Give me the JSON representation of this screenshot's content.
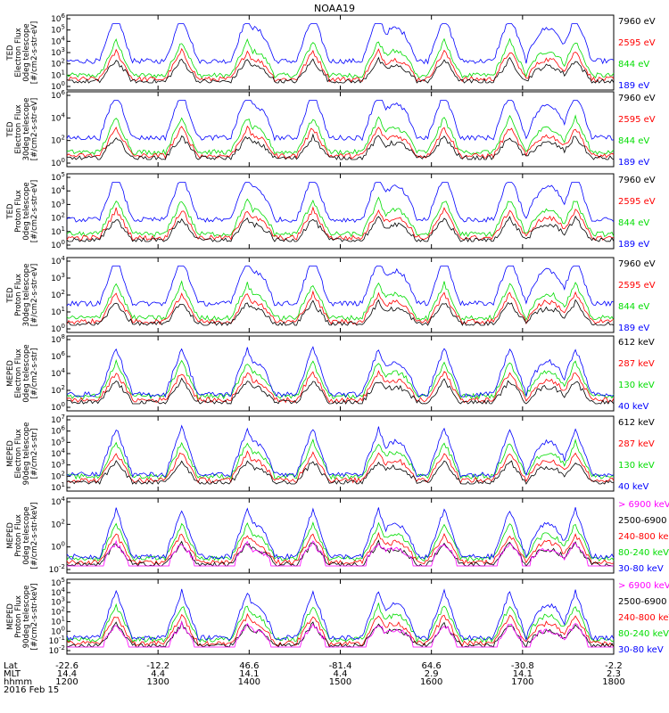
{
  "title": "NOAA19",
  "colors": {
    "blue": "#0000ff",
    "red": "#ff0000",
    "green": "#00dd00",
    "black": "#000000",
    "magenta": "#ff00ff"
  },
  "panels": [
    {
      "ylabel": [
        "TED",
        "Electron Flux",
        "0deg telescope",
        "[#/cm2-s-str-eV]"
      ],
      "yticks": [
        "10^6",
        "10^5",
        "10^4",
        "10^3",
        "10^2",
        "10^1",
        "10^0"
      ],
      "legend": [
        {
          "text": "7960 eV",
          "color": "#000000"
        },
        {
          "text": "2595 eV",
          "color": "#ff0000"
        },
        {
          "text": "844 eV",
          "color": "#00dd00"
        },
        {
          "text": "189 eV",
          "color": "#0000ff"
        }
      ]
    },
    {
      "ylabel": [
        "TED",
        "Electron Flux",
        "30deg telescope",
        "[#/cm2-s-str-eV]"
      ],
      "yticks": [
        "10^6",
        "10^4",
        "10^2",
        "10^0"
      ],
      "legend": [
        {
          "text": "7960 eV",
          "color": "#000000"
        },
        {
          "text": "2595 eV",
          "color": "#ff0000"
        },
        {
          "text": "844 eV",
          "color": "#00dd00"
        },
        {
          "text": "189 eV",
          "color": "#0000ff"
        }
      ]
    },
    {
      "ylabel": [
        "TED",
        "Proton Flux",
        "0deg telescope",
        "[#/cm2-s-str-eV]"
      ],
      "yticks": [
        "10^5",
        "10^4",
        "10^3",
        "10^2",
        "10^1",
        "10^0"
      ],
      "legend": [
        {
          "text": "7960 eV",
          "color": "#000000"
        },
        {
          "text": "2595 eV",
          "color": "#ff0000"
        },
        {
          "text": "844 eV",
          "color": "#00dd00"
        },
        {
          "text": "189 eV",
          "color": "#0000ff"
        }
      ]
    },
    {
      "ylabel": [
        "TED",
        "Proton Flux",
        "30deg telescope",
        "[#/cm2-s-str-eV]"
      ],
      "yticks": [
        "10^4",
        "10^3",
        "10^2",
        "10^1",
        "10^0"
      ],
      "legend": [
        {
          "text": "7960 eV",
          "color": "#000000"
        },
        {
          "text": "2595 eV",
          "color": "#ff0000"
        },
        {
          "text": "844 eV",
          "color": "#00dd00"
        },
        {
          "text": "189 eV",
          "color": "#0000ff"
        }
      ]
    },
    {
      "ylabel": [
        "MEPED",
        "Electron Flux",
        "0deg telescope",
        "[#/cm2-s-str]"
      ],
      "yticks": [
        "10^8",
        "10^6",
        "10^4",
        "10^2",
        "10^0"
      ],
      "legend": [
        {
          "text": "612 keV",
          "color": "#000000"
        },
        {
          "text": "287 keV",
          "color": "#ff0000"
        },
        {
          "text": "130 keV",
          "color": "#00dd00"
        },
        {
          "text": "40 keV",
          "color": "#0000ff"
        }
      ]
    },
    {
      "ylabel": [
        "MEPED",
        "Electron Flux",
        "90deg telescope",
        "[#/cm2-s-str]"
      ],
      "yticks": [
        "10^7",
        "10^6",
        "10^5",
        "10^4",
        "10^3",
        "10^2",
        "10^1"
      ],
      "legend": [
        {
          "text": "612 keV",
          "color": "#000000"
        },
        {
          "text": "287 keV",
          "color": "#ff0000"
        },
        {
          "text": "130 keV",
          "color": "#00dd00"
        },
        {
          "text": "40 keV",
          "color": "#0000ff"
        }
      ]
    },
    {
      "ylabel": [
        "MEPED",
        "Proton Flux",
        "0deg telescope",
        "[#/cm2-s-str-keV]"
      ],
      "yticks": [
        "10^4",
        "10^2",
        "10^0",
        "10^-2"
      ],
      "legend": [
        {
          "text": "> 6900 keV",
          "color": "#ff00ff"
        },
        {
          "text": "2500-6900",
          "color": "#000000"
        },
        {
          "text": "240-800 ke",
          "color": "#ff0000"
        },
        {
          "text": "80-240 keV",
          "color": "#00dd00"
        },
        {
          "text": "30-80 keV",
          "color": "#0000ff"
        }
      ]
    },
    {
      "ylabel": [
        "MEPED",
        "Proton Flux",
        "90deg telescope",
        "[#/cm2-s-str-keV]"
      ],
      "yticks": [
        "10^5",
        "10^4",
        "10^3",
        "10^2",
        "10^1",
        "10^0",
        "10^-1",
        "10^-2"
      ],
      "legend": [
        {
          "text": "> 6900 keV",
          "color": "#ff00ff"
        },
        {
          "text": "2500-6900",
          "color": "#000000"
        },
        {
          "text": "240-800 keV",
          "color": "#ff0000"
        },
        {
          "text": "80-240 keV",
          "color": "#00dd00"
        },
        {
          "text": "30-80 keV",
          "color": "#0000ff"
        }
      ]
    }
  ],
  "xaxis": {
    "row_labels": [
      "Lat",
      "MLT",
      "hhmm",
      "2016 Feb 15"
    ],
    "ticks": [
      {
        "lat": "-22.6",
        "mlt": "14.4",
        "hhmm": "1200"
      },
      {
        "lat": "-12.2",
        "mlt": "4.4",
        "hhmm": "1300"
      },
      {
        "lat": "46.6",
        "mlt": "14.1",
        "hhmm": "1400"
      },
      {
        "lat": "-81.4",
        "mlt": "4.4",
        "hhmm": "1500"
      },
      {
        "lat": "64.6",
        "mlt": "2.9",
        "hhmm": "1600"
      },
      {
        "lat": "-30.8",
        "mlt": "14.1",
        "hhmm": "1700"
      },
      {
        "lat": "-2.2",
        "mlt": "2.3",
        "hhmm": "1800"
      }
    ]
  },
  "chart_data": {
    "type": "line",
    "title": "NOAA19",
    "x_range": [
      "1200",
      "1800"
    ],
    "x_tick_labels": [
      "1200",
      "1300",
      "1400",
      "1500",
      "1600",
      "1700",
      "1800"
    ],
    "date": "2016 Feb 15",
    "y_scale": "log",
    "panels_count": 8,
    "notes_series_shape": "eight stacked time series panels of particle flux on logarithmic axes; flux enhancements occur in recurring bursts near each orbital pass"
  }
}
